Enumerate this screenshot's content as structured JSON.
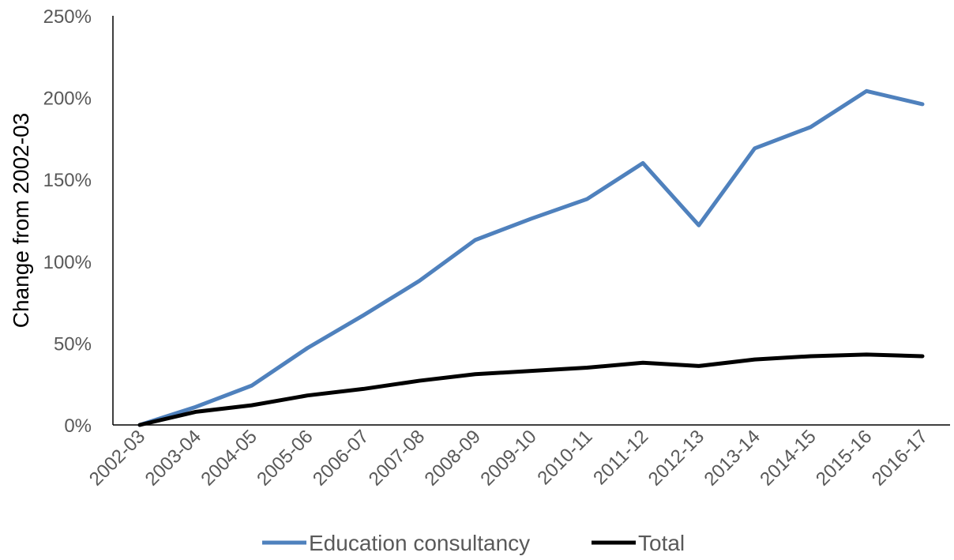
{
  "chart_data": {
    "type": "line",
    "title": "",
    "xlabel": "",
    "ylabel": "Change from 2002-03",
    "categories": [
      "2002-03",
      "2003-04",
      "2004-05",
      "2005-06",
      "2006-07",
      "2007-08",
      "2008-09",
      "2009-10",
      "2010-11",
      "2011-12",
      "2012-13",
      "2013-14",
      "2014-15",
      "2015-16",
      "2016-17"
    ],
    "ylim": [
      0,
      250
    ],
    "yticks": [
      0,
      50,
      100,
      150,
      200,
      250
    ],
    "ytick_labels": [
      "0%",
      "50%",
      "100%",
      "150%",
      "200%",
      "250%"
    ],
    "grid": false,
    "legend_position": "bottom",
    "series": [
      {
        "name": "Education consultancy",
        "color": "#4f81bd",
        "values": [
          0,
          11,
          24,
          47,
          67,
          88,
          113,
          126,
          138,
          160,
          122,
          169,
          182,
          204,
          196
        ]
      },
      {
        "name": "Total",
        "color": "#000000",
        "values": [
          0,
          8,
          12,
          18,
          22,
          27,
          31,
          33,
          35,
          38,
          36,
          40,
          42,
          43,
          42
        ]
      }
    ]
  }
}
